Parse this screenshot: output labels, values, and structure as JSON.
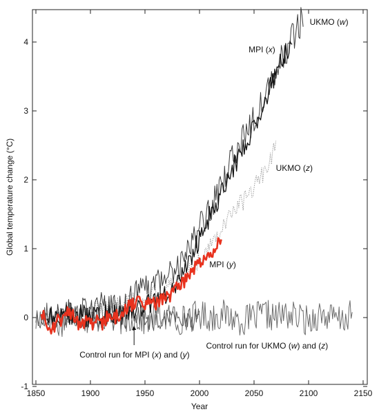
{
  "chart_data": {
    "type": "line",
    "title": "",
    "xlabel": "Year",
    "ylabel": "Global temperature change (°C)",
    "xlim": [
      1850,
      2150
    ],
    "ylim": [
      -1,
      4.4
    ],
    "xticks": [
      1850,
      1900,
      1950,
      2000,
      2050,
      2100,
      2150
    ],
    "xtick_labels": [
      "1850",
      "1900",
      "1950",
      "2000",
      "2050",
      "2100",
      "2150"
    ],
    "yticks": [
      -1,
      0,
      1,
      2,
      3,
      4
    ],
    "ytick_labels": [
      "-1",
      "0",
      "1",
      "2",
      "3",
      "4"
    ],
    "grid": false,
    "legend": "none",
    "series": [
      {
        "key": "ukmo_w",
        "color": "#3a3a3a",
        "style": "solid",
        "points": [
          [
            1860,
            -0.05
          ],
          [
            1870,
            0.05
          ],
          [
            1880,
            0.1
          ],
          [
            1890,
            0.05
          ],
          [
            1900,
            0.1
          ],
          [
            1910,
            0.15
          ],
          [
            1920,
            0.1
          ],
          [
            1930,
            0.2
          ],
          [
            1940,
            0.3
          ],
          [
            1950,
            0.4
          ],
          [
            1960,
            0.45
          ],
          [
            1970,
            0.6
          ],
          [
            1980,
            0.75
          ],
          [
            1990,
            1.0
          ],
          [
            2000,
            1.3
          ],
          [
            2010,
            1.6
          ],
          [
            2020,
            1.9
          ],
          [
            2030,
            2.3
          ],
          [
            2040,
            2.6
          ],
          [
            2050,
            2.9
          ],
          [
            2060,
            3.3
          ],
          [
            2070,
            3.6
          ],
          [
            2080,
            3.9
          ],
          [
            2090,
            4.2
          ],
          [
            2095,
            4.35
          ]
        ]
      },
      {
        "key": "mpi_x",
        "color": "#111111",
        "style": "solid",
        "points": [
          [
            1860,
            0.0
          ],
          [
            1870,
            0.02
          ],
          [
            1880,
            0.05
          ],
          [
            1890,
            0.05
          ],
          [
            1900,
            0.0
          ],
          [
            1910,
            0.05
          ],
          [
            1920,
            0.05
          ],
          [
            1930,
            0.05
          ],
          [
            1940,
            0.1
          ],
          [
            1950,
            0.15
          ],
          [
            1960,
            0.25
          ],
          [
            1970,
            0.35
          ],
          [
            1980,
            0.5
          ],
          [
            1990,
            0.8
          ],
          [
            2000,
            1.15
          ],
          [
            2010,
            1.5
          ],
          [
            2020,
            1.8
          ],
          [
            2030,
            2.15
          ],
          [
            2040,
            2.45
          ],
          [
            2050,
            2.8
          ],
          [
            2060,
            3.15
          ],
          [
            2070,
            3.55
          ],
          [
            2080,
            3.85
          ],
          [
            2085,
            4.05
          ]
        ]
      },
      {
        "key": "ukmo_z",
        "color": "#9a9a9a",
        "style": "dotted",
        "points": [
          [
            1860,
            0.0
          ],
          [
            1880,
            0.05
          ],
          [
            1900,
            0.1
          ],
          [
            1920,
            0.15
          ],
          [
            1940,
            0.25
          ],
          [
            1960,
            0.35
          ],
          [
            1980,
            0.5
          ],
          [
            1990,
            0.65
          ],
          [
            2000,
            0.85
          ],
          [
            2010,
            1.05
          ],
          [
            2020,
            1.3
          ],
          [
            2030,
            1.55
          ],
          [
            2040,
            1.7
          ],
          [
            2050,
            1.9
          ],
          [
            2060,
            2.15
          ],
          [
            2068,
            2.4
          ],
          [
            2070,
            2.55
          ]
        ]
      },
      {
        "key": "mpi_y",
        "color": "#e8321e",
        "style": "solid",
        "points": [
          [
            1855,
            0.05
          ],
          [
            1860,
            -0.05
          ],
          [
            1865,
            -0.2
          ],
          [
            1870,
            0.0
          ],
          [
            1875,
            -0.05
          ],
          [
            1880,
            0.1
          ],
          [
            1885,
            0.0
          ],
          [
            1890,
            -0.1
          ],
          [
            1895,
            -0.05
          ],
          [
            1900,
            -0.1
          ],
          [
            1905,
            -0.05
          ],
          [
            1910,
            -0.1
          ],
          [
            1915,
            0.0
          ],
          [
            1920,
            -0.05
          ],
          [
            1925,
            0.05
          ],
          [
            1930,
            0.05
          ],
          [
            1935,
            0.15
          ],
          [
            1940,
            0.2
          ],
          [
            1945,
            0.25
          ],
          [
            1950,
            0.2
          ],
          [
            1955,
            0.25
          ],
          [
            1960,
            0.2
          ],
          [
            1965,
            0.25
          ],
          [
            1970,
            0.3
          ],
          [
            1975,
            0.35
          ],
          [
            1980,
            0.45
          ],
          [
            1985,
            0.5
          ],
          [
            1990,
            0.6
          ],
          [
            1995,
            0.7
          ],
          [
            2000,
            0.8
          ],
          [
            2005,
            0.85
          ],
          [
            2010,
            0.9
          ],
          [
            2015,
            1.05
          ],
          [
            2020,
            1.15
          ]
        ]
      },
      {
        "key": "control_mpi",
        "color": "#555555",
        "style": "solid",
        "points": [
          [
            1850,
            0.0
          ],
          [
            1860,
            0.05
          ],
          [
            1870,
            -0.05
          ],
          [
            1880,
            0.05
          ],
          [
            1890,
            0.0
          ],
          [
            1900,
            -0.05
          ],
          [
            1910,
            0.05
          ],
          [
            1920,
            -0.05
          ],
          [
            1930,
            0.0
          ],
          [
            1940,
            0.05
          ],
          [
            1950,
            0.0
          ],
          [
            1960,
            -0.05
          ],
          [
            1970,
            0.0
          ],
          [
            1980,
            0.0
          ],
          [
            1990,
            -0.05
          ],
          [
            2000,
            0.05
          ]
        ]
      },
      {
        "key": "control_ukmo",
        "color": "#6a6a6a",
        "style": "solid",
        "points": [
          [
            1850,
            -0.05
          ],
          [
            1860,
            0.05
          ],
          [
            1870,
            -0.1
          ],
          [
            1880,
            0.0
          ],
          [
            1890,
            0.05
          ],
          [
            1900,
            -0.05
          ],
          [
            1910,
            0.0
          ],
          [
            1920,
            0.05
          ],
          [
            1930,
            -0.05
          ],
          [
            1940,
            0.0
          ],
          [
            1950,
            -0.05
          ],
          [
            1960,
            0.05
          ],
          [
            1970,
            0.0
          ],
          [
            1980,
            -0.05
          ],
          [
            1990,
            0.0
          ],
          [
            2000,
            0.05
          ],
          [
            2010,
            0.0
          ],
          [
            2020,
            0.05
          ],
          [
            2030,
            0.0
          ],
          [
            2040,
            -0.05
          ],
          [
            2050,
            0.0
          ],
          [
            2060,
            0.05
          ],
          [
            2070,
            0.0
          ],
          [
            2080,
            0.05
          ],
          [
            2090,
            0.0
          ],
          [
            2100,
            -0.05
          ],
          [
            2110,
            0.05
          ],
          [
            2120,
            0.0
          ],
          [
            2130,
            -0.05
          ],
          [
            2140,
            0.05
          ]
        ]
      }
    ],
    "annotations": [
      {
        "key": "ukmo_w",
        "text": "UKMO",
        "italic": "w",
        "x": 2101,
        "y": 4.25
      },
      {
        "key": "mpi_x",
        "text": "MPI",
        "italic": "x",
        "x": 2045,
        "y": 3.85
      },
      {
        "key": "ukmo_z",
        "text": "UKMO",
        "italic": "z",
        "x": 2070,
        "y": 2.13
      },
      {
        "key": "mpi_y",
        "text": "MPI",
        "italic": "y",
        "x": 2009,
        "y": 0.73
      },
      {
        "key": "control_mpi",
        "text": "Control run for MPI",
        "italic": "x",
        "mid": "and",
        "italic2": "y",
        "x": 1890,
        "y": -0.58
      },
      {
        "key": "control_ukmo",
        "text": "Control run for UKMO",
        "italic": "w",
        "mid": "and",
        "italic2": "z",
        "x": 2006,
        "y": -0.45
      }
    ],
    "arrow": {
      "from": [
        1940,
        -0.4
      ],
      "to": [
        1940,
        -0.12
      ]
    }
  }
}
